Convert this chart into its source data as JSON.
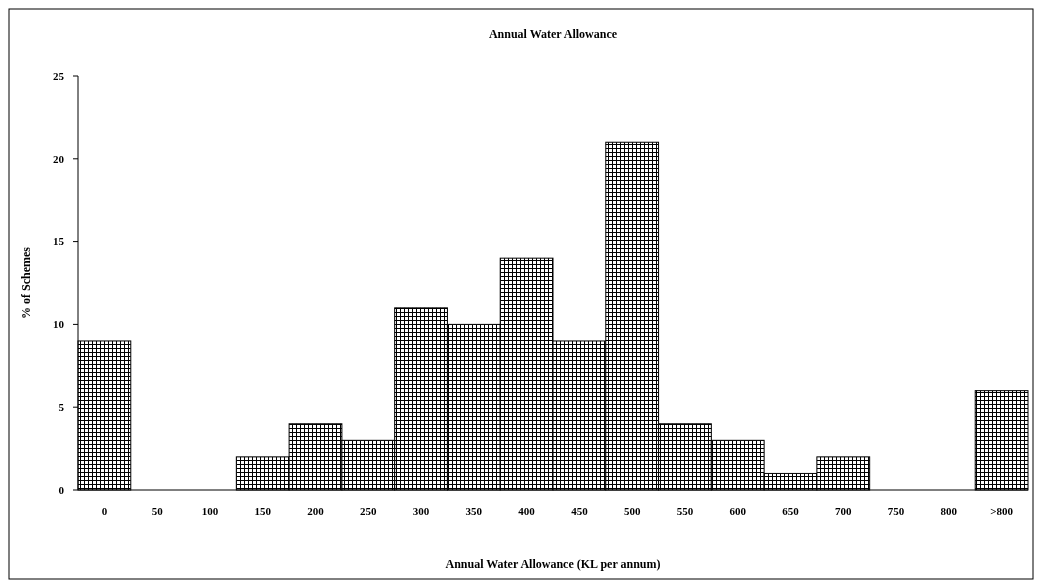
{
  "chart_data": {
    "type": "bar",
    "title": "Annual Water Allowance",
    "xlabel": "Annual Water Allowance (KL per annum)",
    "ylabel": "% of Schemes",
    "categories": [
      "0",
      "50",
      "100",
      "150",
      "200",
      "250",
      "300",
      "350",
      "400",
      "450",
      "500",
      "550",
      "600",
      "650",
      "700",
      "750",
      "800",
      ">800"
    ],
    "values": [
      9,
      0,
      0,
      2,
      4,
      3,
      11,
      10,
      14,
      9,
      21,
      4,
      3,
      1,
      2,
      0,
      0,
      6
    ],
    "color": "#000000",
    "ylim": [
      0,
      25
    ],
    "yticks": [
      0,
      5,
      10,
      15,
      20,
      25
    ],
    "grid": false
  }
}
